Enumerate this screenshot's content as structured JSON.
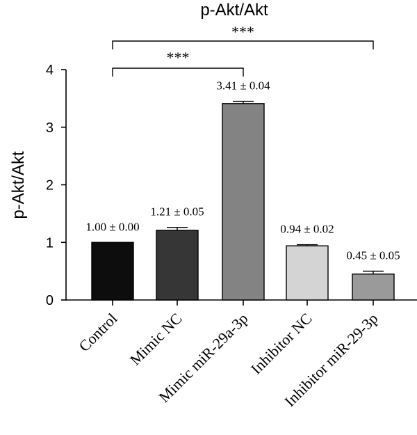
{
  "chart_data": {
    "type": "bar",
    "title": "p-Akt/Akt",
    "xlabel": "",
    "ylabel": "p-Akt/Akt",
    "ylim": [
      0,
      4
    ],
    "yticks": [
      "0",
      "1",
      "2",
      "3",
      "4"
    ],
    "grid": false,
    "categories": [
      "Control",
      "Mimic NC",
      "Mimic miR-29a-3p",
      "Inhibitor NC",
      "Inhibitor miR-29-3p"
    ],
    "values": [
      1.0,
      1.21,
      3.41,
      0.94,
      0.45
    ],
    "errors": [
      0.0,
      0.05,
      0.04,
      0.02,
      0.05
    ],
    "bar_labels": [
      "1.00 ± 0.00",
      "1.21 ± 0.05",
      "3.41 ± 0.04",
      "0.94 ± 0.02",
      "0.45 ± 0.05"
    ],
    "bar_colors": [
      "#0d0d0d",
      "#363636",
      "#838383",
      "#d4d4d4",
      "#9a9a9a"
    ],
    "significance": [
      {
        "from": "Control",
        "to": "Mimic miR-29a-3p",
        "label": "***"
      },
      {
        "from": "Control",
        "to": "Inhibitor miR-29-3p",
        "label": "***"
      }
    ]
  }
}
